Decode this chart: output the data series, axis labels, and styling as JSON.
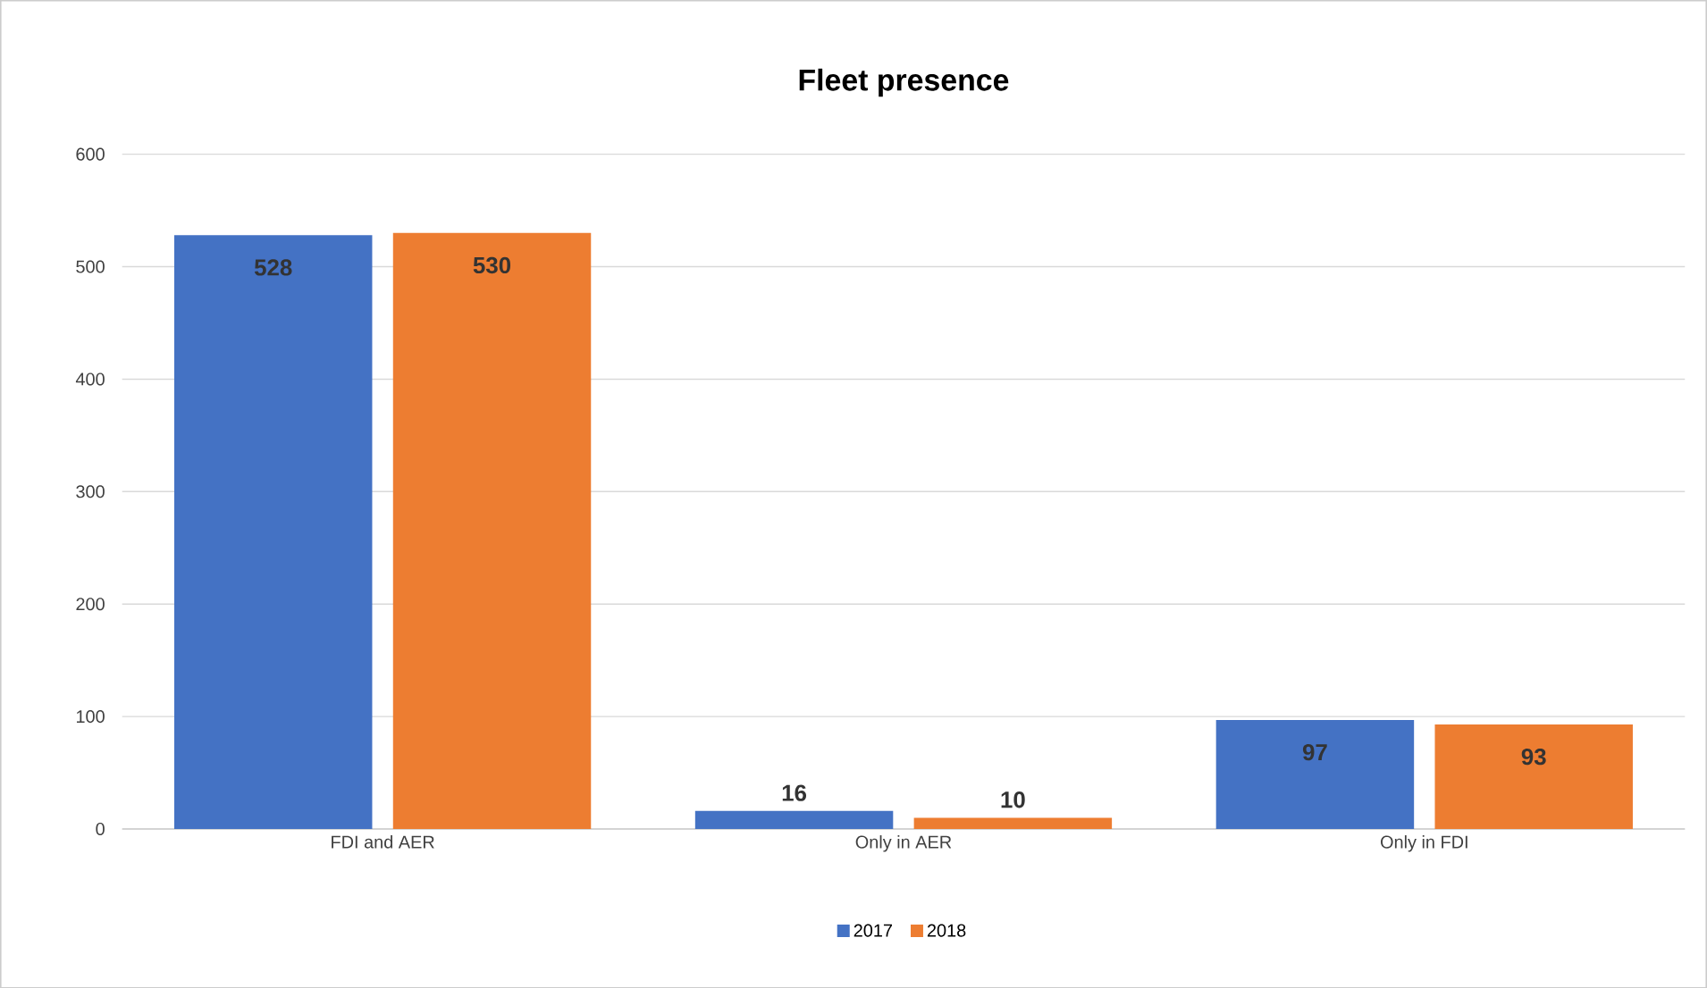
{
  "chart_data": {
    "type": "bar",
    "title": "Fleet presence",
    "categories": [
      "FDI and AER",
      "Only in AER",
      "Only in FDI"
    ],
    "series": [
      {
        "name": "2017",
        "color": "#4472c4",
        "values": [
          528,
          16,
          97
        ]
      },
      {
        "name": "2018",
        "color": "#ed7d31",
        "values": [
          530,
          10,
          93
        ]
      }
    ],
    "ylim": [
      0,
      600
    ],
    "yticks": [
      0,
      100,
      200,
      300,
      400,
      500,
      600
    ],
    "grid": "y",
    "legend": "bottom",
    "data_labels": true
  }
}
